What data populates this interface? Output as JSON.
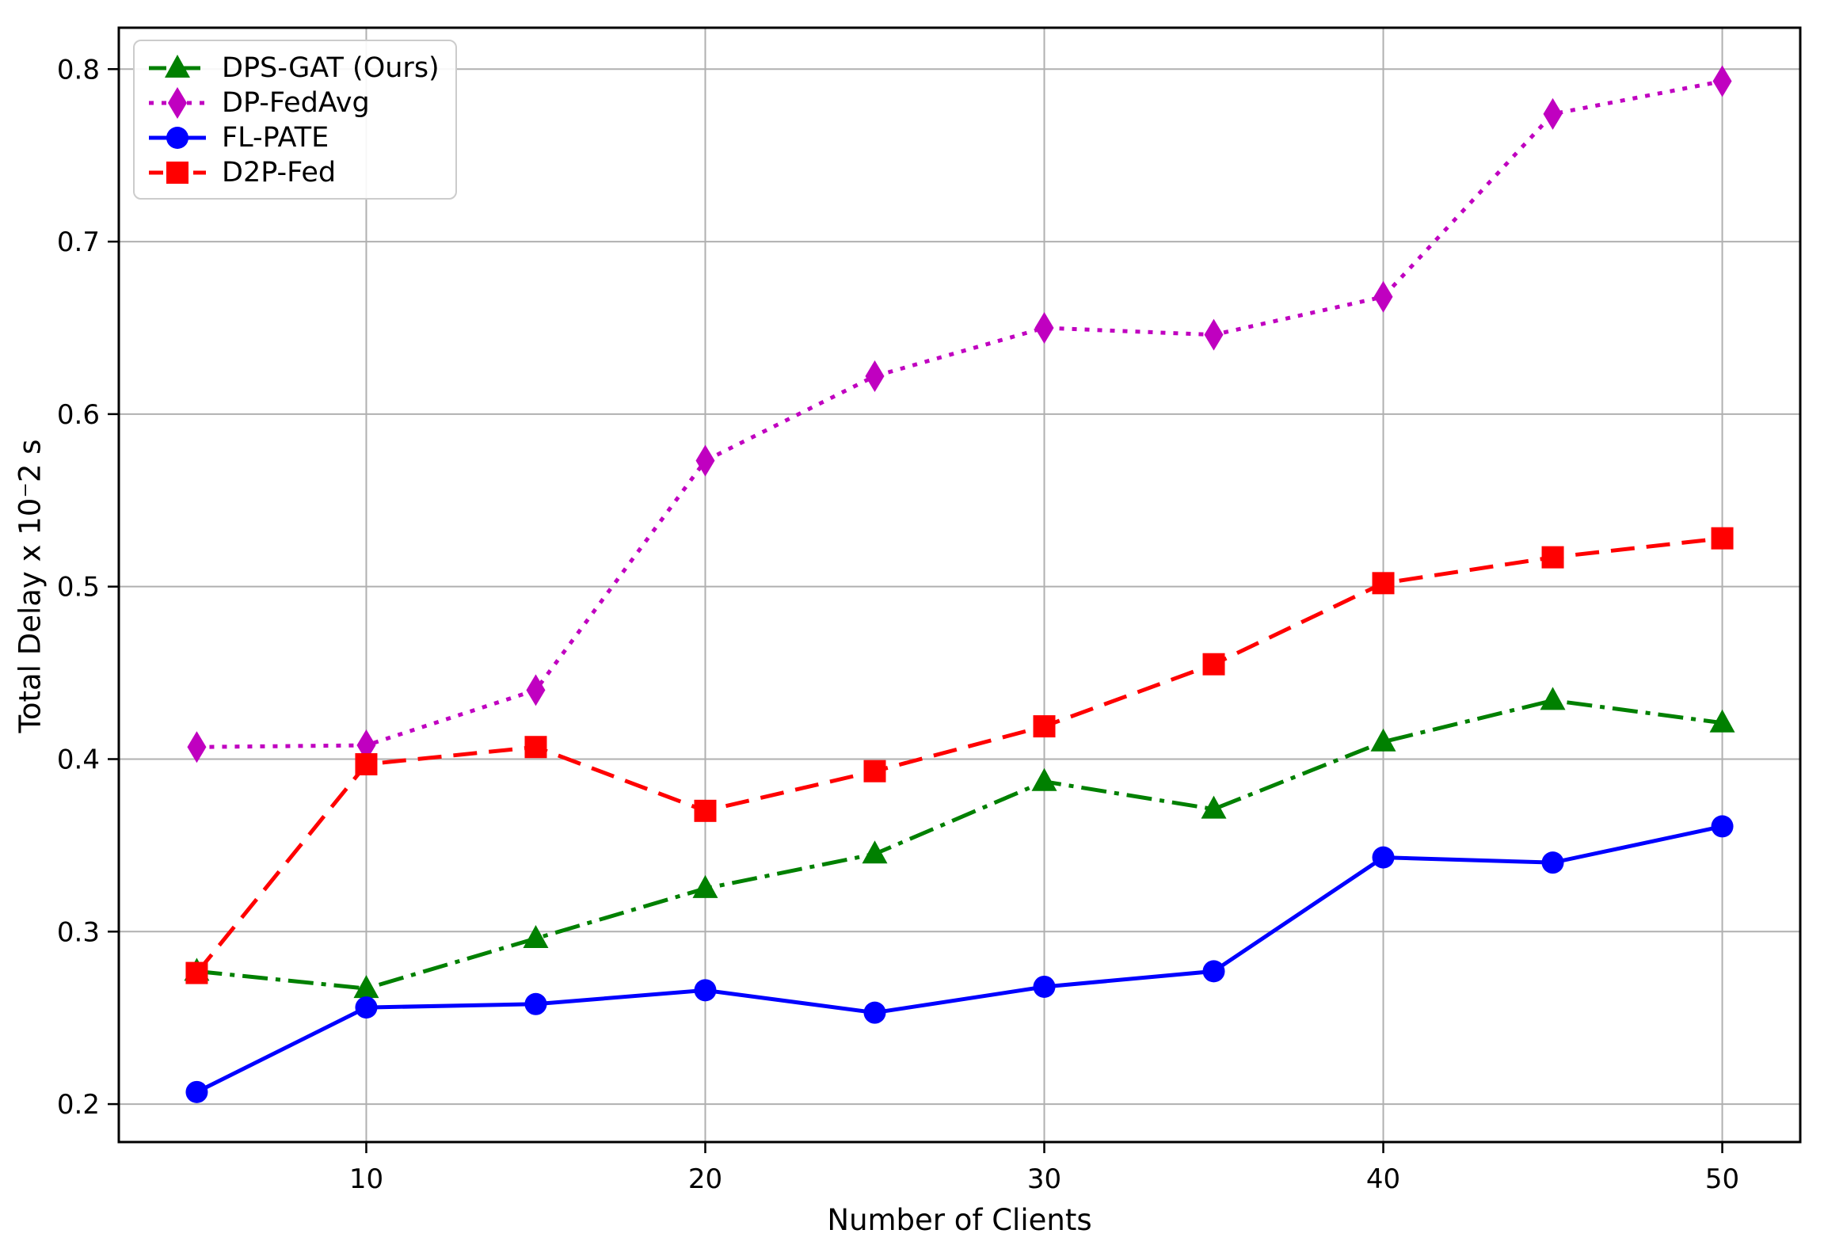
{
  "figure": {
    "background": "#ffffff",
    "frame_color": "#000000",
    "grid_color": "#b0b0b0",
    "tick_color": "#000000"
  },
  "chart_data": {
    "type": "line",
    "title": "",
    "xlabel": "Number of Clients",
    "ylabel": "Total Delay x 10⁻2 s",
    "x": [
      5,
      10,
      15,
      20,
      25,
      30,
      35,
      40,
      45,
      50
    ],
    "xticks": [
      10,
      20,
      30,
      40,
      50
    ],
    "yticks": [
      0.2,
      0.3,
      0.4,
      0.5,
      0.6,
      0.7,
      0.8
    ],
    "xlim": [
      2.7,
      52.3
    ],
    "ylim": [
      0.178,
      0.824
    ],
    "grid": true,
    "legend_position": "upper left",
    "series": [
      {
        "name": "DPS-GAT (Ours)",
        "color": "#008000",
        "linestyle": "dashdot",
        "marker": "triangle",
        "values": [
          0.277,
          0.267,
          0.296,
          0.325,
          0.345,
          0.387,
          0.371,
          0.41,
          0.434,
          0.421
        ]
      },
      {
        "name": "DP-FedAvg",
        "color": "#C000C0",
        "linestyle": "dotted",
        "marker": "diamond",
        "values": [
          0.407,
          0.408,
          0.44,
          0.573,
          0.622,
          0.65,
          0.646,
          0.668,
          0.774,
          0.793
        ]
      },
      {
        "name": "FL-PATE",
        "color": "#0000FF",
        "linestyle": "solid",
        "marker": "circle",
        "values": [
          0.207,
          0.256,
          0.258,
          0.266,
          0.253,
          0.268,
          0.277,
          0.343,
          0.34,
          0.361
        ]
      },
      {
        "name": "D2P-Fed",
        "color": "#FF0000",
        "linestyle": "dashed",
        "marker": "square",
        "values": [
          0.276,
          0.397,
          0.407,
          0.37,
          0.393,
          0.419,
          0.455,
          0.502,
          0.517,
          0.528
        ]
      }
    ]
  }
}
